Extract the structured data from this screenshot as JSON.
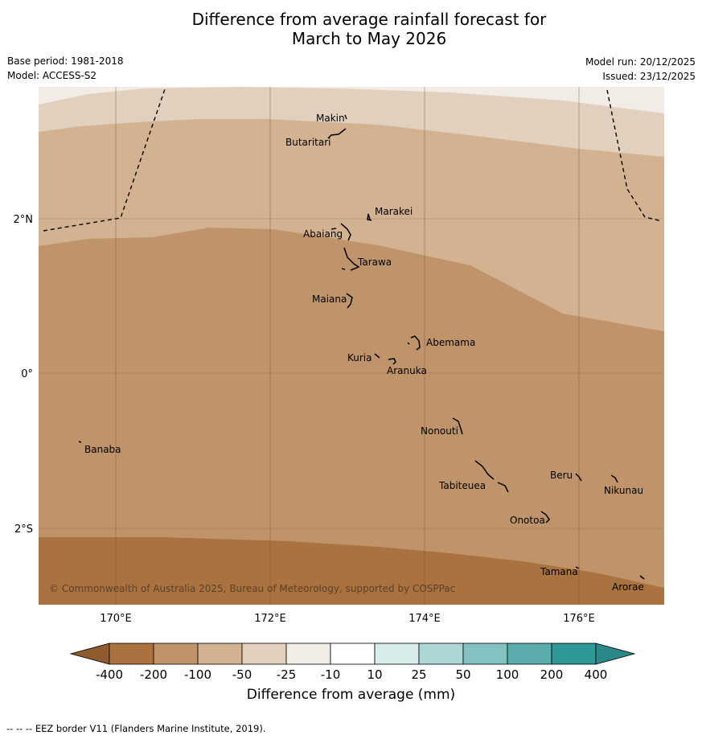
{
  "title_line1": "Difference from average rainfall forecast for",
  "title_line2": "March to May 2026",
  "base_period": "Base period: 1981-2018",
  "model": "Model: ACCESS-S2",
  "model_run": "Model run: 20/12/2025",
  "issued": "Issued: 23/12/2025",
  "copyright": "© Commonwealth of Australia 2025, Bureau of Meteorology, supported by COSPPac",
  "footer_note": "--  --  -- EEZ border V11 (Flanders Marine Institute, 2019).",
  "colorbar": {
    "label": "Difference from average (mm)",
    "ticks": [
      "-400",
      "-200",
      "-100",
      "-50",
      "-25",
      "-10",
      "10",
      "25",
      "50",
      "100",
      "200",
      "400"
    ],
    "colors": [
      "#a9723f",
      "#c0946a",
      "#d2b290",
      "#e2d0be",
      "#f1ece5",
      "#ffffff",
      "#d6ebea",
      "#acd7d6",
      "#84c2c1",
      "#5aacad",
      "#2f9898"
    ],
    "under_color": "#8f5c2f",
    "over_color": "#2a8888"
  },
  "axes": {
    "lon_ticks": [
      "170°E",
      "172°E",
      "174°E",
      "176°E"
    ],
    "lat_ticks": [
      "2°N",
      "0°",
      "2°S"
    ]
  },
  "islands": [
    "Makin",
    "Butaritari",
    "Marakei",
    "Abaiang",
    "Tarawa",
    "Maiana",
    "Abemama",
    "Kuria",
    "Aranuka",
    "Nonouti",
    "Banaba",
    "Beru",
    "Nikunau",
    "Tabiteuea",
    "Onotoa",
    "Tamana",
    "Arorae"
  ]
}
